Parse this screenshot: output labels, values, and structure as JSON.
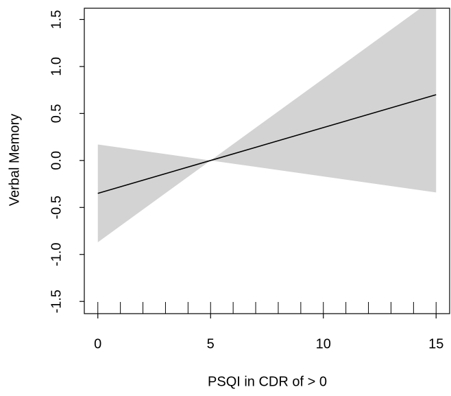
{
  "chart_data": {
    "type": "line",
    "xlabel": "PSQI in CDR of > 0",
    "ylabel": "Verbal Memory",
    "x": [
      0,
      5,
      15
    ],
    "values": [
      -0.35,
      0,
      0.7
    ],
    "color": "#000000",
    "band": {
      "upper": [
        0.17,
        0,
        1.74
      ],
      "lower": [
        -0.87,
        0,
        -0.34
      ],
      "color": "#d3d3d3"
    },
    "rug": [
      0,
      1,
      2,
      3,
      4,
      5,
      6,
      7,
      8,
      9,
      10,
      11,
      12,
      13,
      14,
      15
    ],
    "xlim": [
      -0.6,
      15.6
    ],
    "ylim": [
      -1.63,
      1.62
    ],
    "xticks": [
      0,
      5,
      10,
      15
    ],
    "yticks": [
      {
        "value": -1.5,
        "label": "-1.5"
      },
      {
        "value": -1,
        "label": "-1.0"
      },
      {
        "value": -0.5,
        "label": "-0.5"
      },
      {
        "value": 0,
        "label": "0.0"
      },
      {
        "value": 0.5,
        "label": "0.5"
      },
      {
        "value": 1,
        "label": "1.0"
      },
      {
        "value": 1.5,
        "label": "1.5"
      }
    ]
  }
}
